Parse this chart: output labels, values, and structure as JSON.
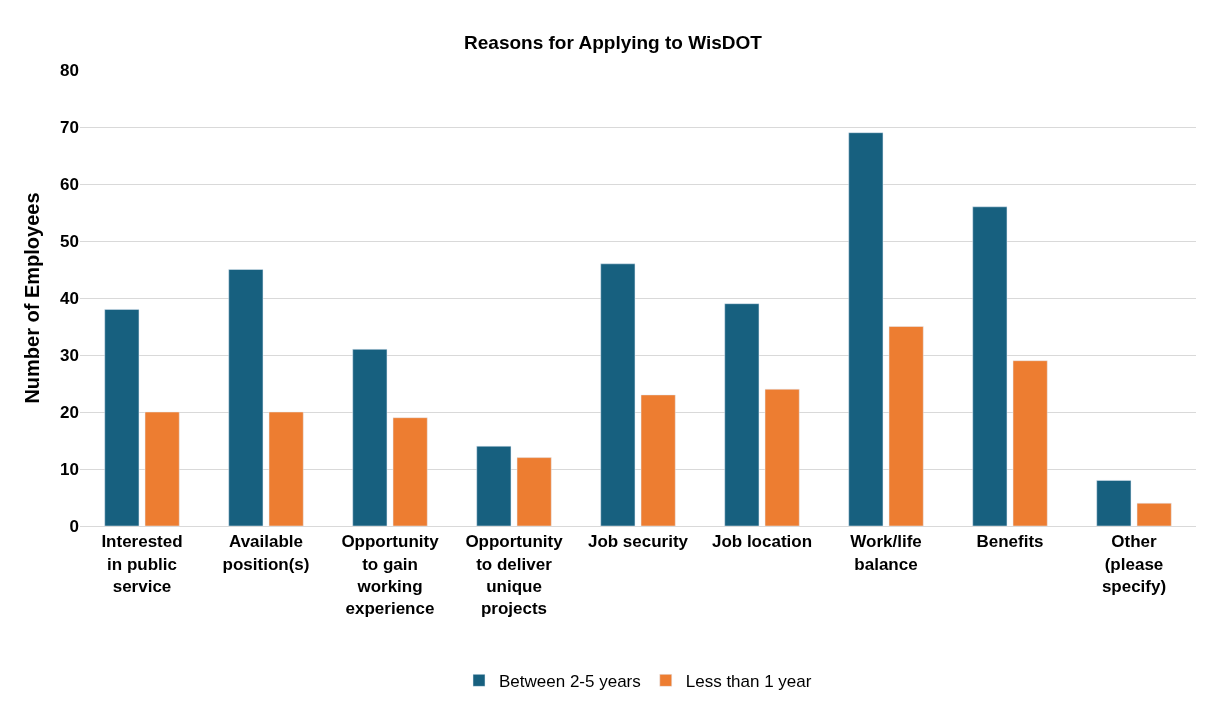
{
  "chart_data": {
    "type": "bar",
    "title": "Reasons for Applying to WisDOT",
    "ylabel": "Number of Employees",
    "categories": [
      "Interested in public service",
      "Available position(s)",
      "Opportunity to gain working experience",
      "Opportunity to deliver unique projects",
      "Job security",
      "Job location",
      "Work/life balance",
      "Benefits",
      "Other (please specify)"
    ],
    "series": [
      {
        "name": "Between 2-5 years",
        "color": "#17607f",
        "values": [
          38,
          45,
          31,
          14,
          46,
          39,
          69,
          56,
          8
        ]
      },
      {
        "name": "Less than 1 year",
        "color": "#ed7d31",
        "values": [
          20,
          20,
          19,
          12,
          23,
          24,
          35,
          29,
          4
        ]
      }
    ],
    "ylim": [
      0,
      80
    ],
    "yticks": [
      0,
      10,
      20,
      30,
      40,
      50,
      60,
      70,
      80
    ],
    "grid": "y",
    "legend": "bottom"
  }
}
